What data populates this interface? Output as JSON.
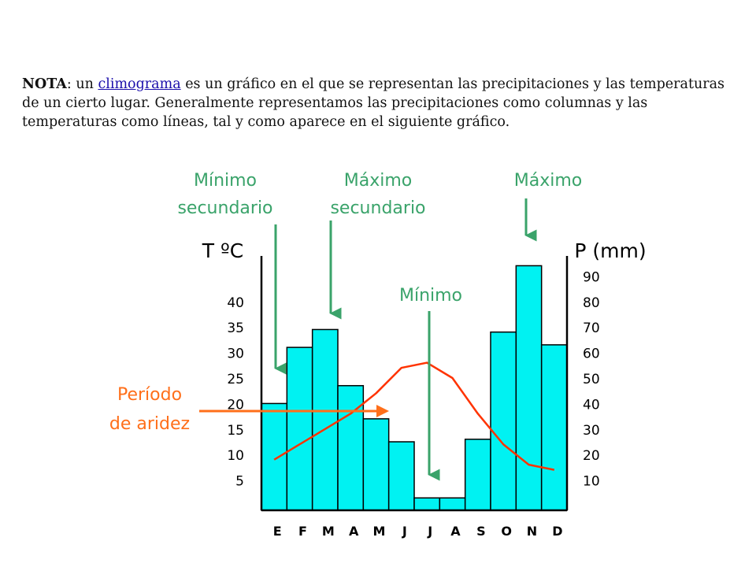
{
  "note": {
    "label": "NOTA",
    "pre_link": ": un ",
    "link_text": "climograma",
    "post_link": " es un gráfico en el que se representan las precipitaciones y las temperaturas de un cierto lugar. Generalmente representamos las precipitaciones como columnas y las temperaturas como líneas, tal y como aparece en el siguiente gráfico."
  },
  "colors": {
    "bar_fill": "#00f2f2",
    "temperature_line": "#ff3300",
    "annotation_green": "#3aa36a",
    "annotation_orange": "#ff6f1a"
  },
  "chart_data": {
    "type": "bar",
    "categories": [
      "E",
      "F",
      "M",
      "A",
      "M",
      "J",
      "J",
      "A",
      "S",
      "O",
      "N",
      "D"
    ],
    "series": [
      {
        "values": [
          40,
          62,
          69,
          47,
          34,
          25,
          3,
          3,
          26,
          68,
          94,
          63
        ]
      },
      {
        "values": [
          9,
          12,
          15,
          18,
          22,
          27,
          28,
          25,
          18,
          12,
          8,
          7
        ]
      }
    ],
    "bar_axis": {
      "label": "P (mm)",
      "ticks": [
        "10",
        "20",
        "30",
        "40",
        "50",
        "60",
        "70",
        "80",
        "90"
      ],
      "ylim": [
        0,
        100
      ]
    },
    "line_axis": {
      "label": "T ºC",
      "ticks": [
        "5",
        "10",
        "15",
        "20",
        "25",
        "30",
        "35",
        "40"
      ],
      "ylim": [
        0,
        50
      ]
    },
    "annotations": {
      "min_sec_1": "Mínimo",
      "min_sec_2": "secundario",
      "max_sec_1": "Máximo",
      "max_sec_2": "secundario",
      "max": "Máximo",
      "min": "Mínimo",
      "arid_1": "Período",
      "arid_2": "de aridez"
    }
  }
}
